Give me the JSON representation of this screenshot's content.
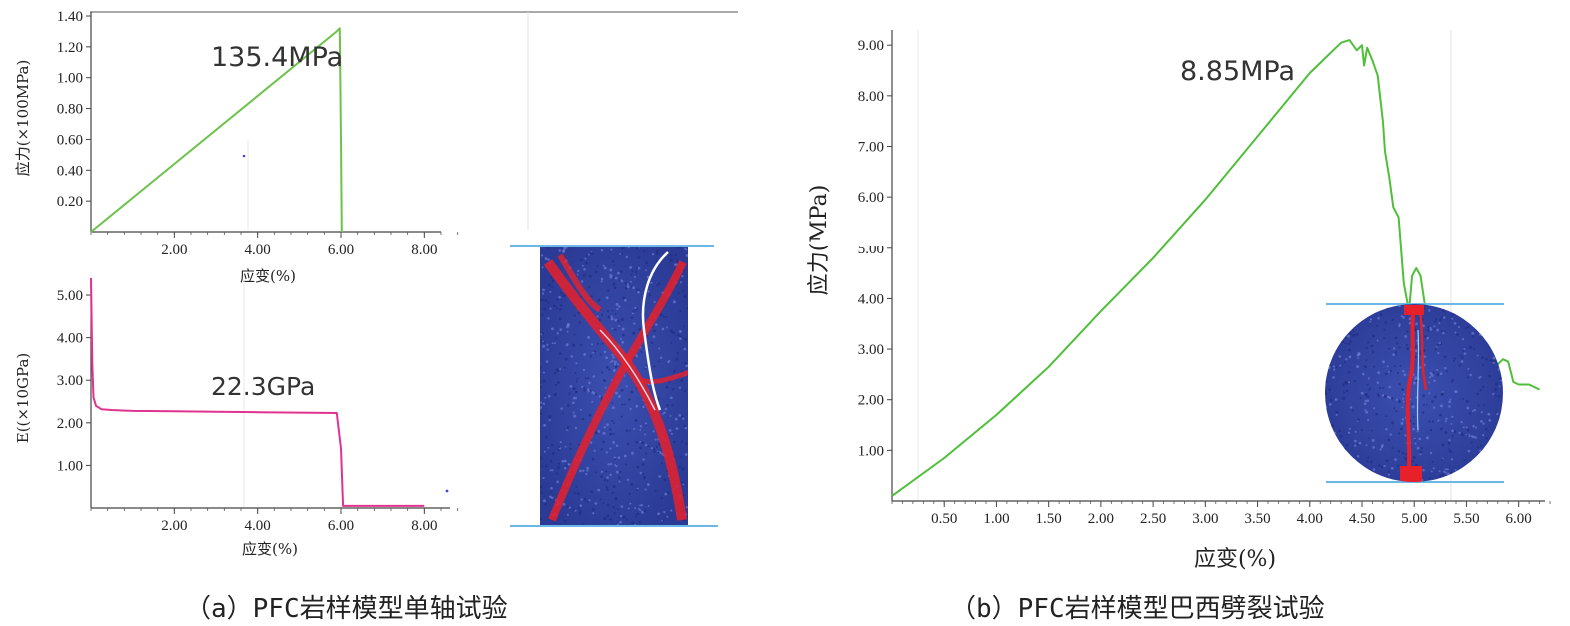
{
  "captions": {
    "a": "（a）PFC岩样模型单轴试验",
    "b": "（b）PFC岩样模型巴西劈裂试验"
  },
  "chart_data": [
    {
      "id": "a-top",
      "type": "line",
      "ylabel": "应力(×100MPa)",
      "xlabel": "应变(%)",
      "xlim": [
        0,
        9
      ],
      "ylim": [
        0,
        1.4
      ],
      "xticks": [
        "2.00",
        "4.00",
        "6.00",
        "8.00"
      ],
      "yticks": [
        "0.20",
        "0.40",
        "0.60",
        "0.80",
        "1.00",
        "1.20",
        "1.40"
      ],
      "annotation": "135.4MPa",
      "series": [
        {
          "color": "#6cc24a",
          "x": [
            0,
            5.9,
            5.97,
            6.0,
            6.02
          ],
          "y": [
            0,
            1.3,
            1.32,
            0.6,
            0.0
          ]
        }
      ]
    },
    {
      "id": "a-bottom",
      "type": "line",
      "ylabel": "E((×10GPa)",
      "xlabel": "应变(%)",
      "xlim": [
        0,
        9
      ],
      "ylim": [
        0,
        5.4
      ],
      "xticks": [
        "2.00",
        "4.00",
        "6.00",
        "8.00"
      ],
      "yticks": [
        "1.00",
        "2.00",
        "3.00",
        "4.00",
        "5.00"
      ],
      "annotation": "22.3GPa",
      "series": [
        {
          "color": "#e0338f",
          "x": [
            0.0,
            0.03,
            0.06,
            0.12,
            0.25,
            0.5,
            1.0,
            2.0,
            3.0,
            4.0,
            5.0,
            5.9,
            6.0,
            6.05,
            6.1,
            8.0
          ],
          "y": [
            5.4,
            3.4,
            2.6,
            2.4,
            2.32,
            2.3,
            2.28,
            2.27,
            2.26,
            2.25,
            2.24,
            2.23,
            1.4,
            0.05,
            0.05,
            0.05
          ]
        }
      ]
    },
    {
      "id": "b",
      "type": "line",
      "ylabel": "应力(MPa)",
      "xlabel": "应变(%)",
      "xlim": [
        0,
        6.3
      ],
      "ylim": [
        0,
        9.3
      ],
      "xticks": [
        "0.50",
        "1.00",
        "1.50",
        "2.00",
        "2.50",
        "3.00",
        "3.50",
        "4.00",
        "4.50",
        "5.00",
        "5.50",
        "6.00"
      ],
      "yticks": [
        "1.00",
        "2.00",
        "3.00",
        "4.00",
        "5.00",
        "6.00",
        "7.00",
        "8.00",
        "9.00"
      ],
      "annotation": "8.85MPa",
      "series": [
        {
          "color": "#4fbf3a",
          "x": [
            0,
            0.5,
            1.0,
            1.5,
            2.0,
            2.5,
            3.0,
            3.5,
            4.0,
            4.3,
            4.38,
            4.45,
            4.5,
            4.52,
            4.55,
            4.6,
            4.65,
            4.7,
            4.72,
            4.76,
            4.8,
            4.85,
            4.9,
            4.95,
            4.98,
            5.02,
            5.06,
            5.1,
            5.15,
            5.2,
            5.3,
            5.4,
            5.5,
            5.55,
            5.6,
            5.7,
            5.8,
            5.85,
            5.9,
            5.95,
            6.0,
            6.1,
            6.2
          ],
          "y": [
            0.1,
            0.85,
            1.7,
            2.65,
            3.75,
            4.8,
            5.95,
            7.2,
            8.45,
            9.05,
            9.1,
            8.9,
            9.0,
            8.6,
            8.95,
            8.7,
            8.4,
            7.5,
            6.9,
            6.4,
            5.8,
            5.6,
            4.3,
            3.75,
            4.45,
            4.6,
            4.45,
            3.9,
            3.8,
            3.6,
            3.35,
            3.05,
            3.15,
            2.95,
            2.95,
            2.9,
            2.7,
            2.8,
            2.75,
            2.35,
            2.3,
            2.3,
            2.2
          ]
        }
      ]
    }
  ]
}
